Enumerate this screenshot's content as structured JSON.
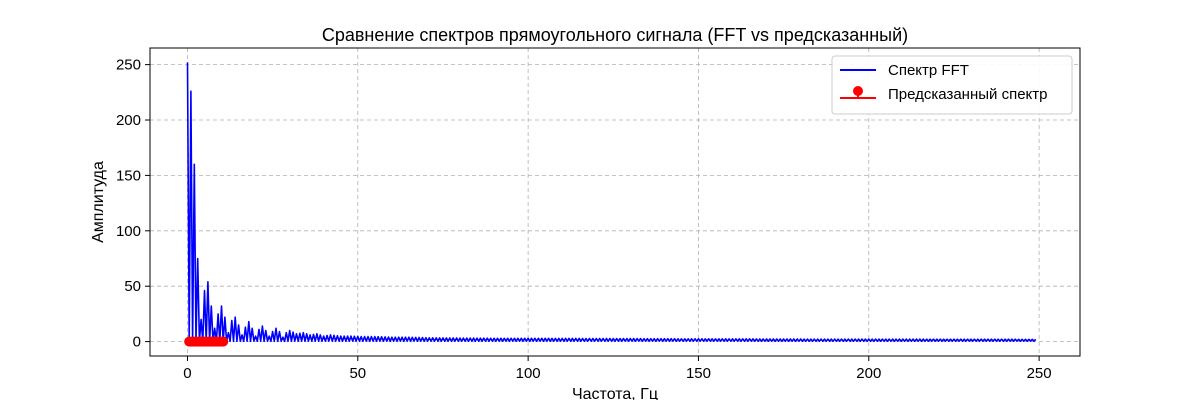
{
  "chart_data": {
    "type": "line",
    "title": "Сравнение спектров прямоугольного сигнала (FFT vs предсказанный)",
    "xlabel": "Частота, Гц",
    "ylabel": "Амплитуда",
    "xlim": [
      -11,
      262
    ],
    "ylim": [
      -13,
      265
    ],
    "xticks": [
      0,
      50,
      100,
      150,
      200,
      250
    ],
    "yticks": [
      0,
      50,
      100,
      150,
      200,
      250
    ],
    "grid": true,
    "legend_position": "top-right",
    "series": [
      {
        "name": "Спектр FFT",
        "kind": "line",
        "color": "#0000ff",
        "peaks": [
          [
            0.0,
            252
          ],
          [
            1.0,
            226
          ],
          [
            2.0,
            160
          ],
          [
            3.0,
            75
          ],
          [
            4.0,
            20
          ],
          [
            5.0,
            46
          ],
          [
            6.0,
            54
          ],
          [
            7.0,
            32
          ],
          [
            8.0,
            12
          ],
          [
            9.0,
            25
          ],
          [
            10.0,
            32
          ],
          [
            11.0,
            22
          ],
          [
            12.0,
            8
          ],
          [
            13.0,
            19
          ],
          [
            14.0,
            22
          ],
          [
            15.0,
            15
          ],
          [
            16.0,
            6
          ],
          [
            17.0,
            13
          ],
          [
            18.0,
            18
          ],
          [
            19.0,
            12
          ],
          [
            20.0,
            5
          ],
          [
            21.0,
            11
          ],
          [
            22.0,
            14
          ],
          [
            23.0,
            10
          ],
          [
            24.0,
            5
          ],
          [
            25.0,
            9
          ],
          [
            26.0,
            12
          ],
          [
            27.0,
            9
          ],
          [
            28.0,
            4
          ],
          [
            29.0,
            8
          ],
          [
            30.0,
            10
          ],
          [
            32.0,
            7
          ],
          [
            34.0,
            8
          ],
          [
            36.0,
            6
          ],
          [
            38.0,
            7
          ],
          [
            40.0,
            5
          ],
          [
            42.0,
            6
          ],
          [
            45.0,
            5
          ],
          [
            48.0,
            5
          ],
          [
            51.0,
            4.5
          ],
          [
            55.0,
            4.5
          ],
          [
            60.0,
            4
          ],
          [
            65.0,
            4
          ],
          [
            70.0,
            3.5
          ],
          [
            80.0,
            3.2
          ],
          [
            90.0,
            3
          ],
          [
            100.0,
            3
          ],
          [
            120.0,
            2.8
          ],
          [
            150.0,
            2.5
          ],
          [
            180.0,
            2.3
          ],
          [
            220.0,
            2.2
          ],
          [
            249.0,
            2.1
          ]
        ],
        "x_end": 249
      },
      {
        "name": "Предсказанный спектр",
        "kind": "stem",
        "color": "#ff0000",
        "x": [
          0.5,
          1.0,
          1.5,
          2.0,
          2.5,
          3.0,
          3.5,
          4.0,
          4.5,
          5.0,
          5.5,
          6.0,
          6.5,
          7.0,
          7.5,
          8.0,
          8.5,
          9.0,
          9.5,
          10.0,
          10.5
        ],
        "y": [
          0,
          0,
          0,
          0,
          0,
          0,
          0,
          0,
          0,
          0,
          0,
          0,
          0,
          0,
          0,
          0,
          0,
          0,
          0,
          0,
          0
        ]
      }
    ]
  }
}
